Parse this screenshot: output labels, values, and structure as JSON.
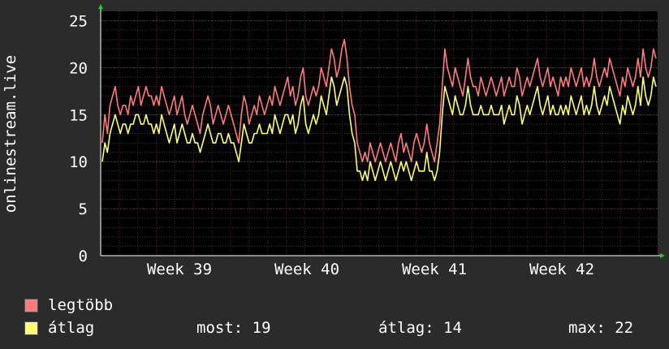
{
  "chart_data": {
    "type": "line",
    "title": "",
    "xlabel": "",
    "ylabel": "onlinestream.live",
    "ylim": [
      0,
      26
    ],
    "yticks": [
      0,
      5,
      10,
      15,
      20,
      25
    ],
    "xticks": [
      "Week 39",
      "Week 40",
      "Week 41",
      "Week 42"
    ],
    "grid": true,
    "background_color": "#000000",
    "series": [
      {
        "name": "legtöbb",
        "color": "#ff7b7b",
        "values": [
          12,
          15,
          13,
          16,
          17,
          18,
          16,
          15,
          16,
          16,
          15,
          17,
          16,
          17,
          18,
          16,
          17,
          18,
          17,
          17,
          16,
          17,
          16,
          18,
          17,
          16,
          15,
          16,
          17,
          15,
          16,
          17,
          15,
          14,
          15,
          16,
          15,
          14,
          13,
          15,
          16,
          17,
          16,
          14,
          15,
          16,
          15,
          14,
          15,
          16,
          15,
          14,
          13,
          12,
          15,
          17,
          16,
          14,
          15,
          16,
          15,
          17,
          16,
          15,
          16,
          17,
          16,
          18,
          17,
          16,
          17,
          18,
          19,
          17,
          18,
          16,
          17,
          19,
          20,
          17,
          16,
          17,
          18,
          17,
          18,
          20,
          19,
          18,
          20,
          22,
          21,
          19,
          20,
          22,
          23,
          21,
          18,
          16,
          15,
          12,
          11,
          10,
          11,
          10,
          12,
          11,
          10,
          11,
          12,
          11,
          10,
          11,
          12,
          11,
          10,
          12,
          13,
          11,
          12,
          11,
          10,
          12,
          13,
          12,
          11,
          12,
          14,
          12,
          11,
          10,
          12,
          14,
          18,
          22,
          20,
          19,
          18,
          20,
          19,
          18,
          17,
          19,
          21,
          19,
          18,
          18,
          17,
          19,
          18,
          17,
          18,
          19,
          18,
          17,
          18,
          19,
          17,
          18,
          19,
          18,
          18,
          20,
          19,
          17,
          18,
          19,
          18,
          19,
          20,
          21,
          19,
          18,
          19,
          20,
          18,
          19,
          18,
          17,
          19,
          18,
          19,
          18,
          20,
          19,
          18,
          19,
          20,
          18,
          19,
          18,
          19,
          21,
          19,
          18,
          19,
          20,
          19,
          21,
          20,
          19,
          18,
          17,
          19,
          18,
          20,
          19,
          18,
          19,
          21,
          19,
          22,
          20,
          19,
          20,
          22,
          21
        ],
        "sampling": "hourly-smoothed"
      },
      {
        "name": "átlag",
        "color": "#ffff77",
        "values": [
          10,
          12,
          11,
          13,
          14,
          15,
          14,
          13,
          14,
          14,
          13,
          14,
          14,
          15,
          15,
          14,
          14,
          15,
          14,
          14,
          13,
          14,
          13,
          15,
          14,
          13,
          12,
          13,
          14,
          12,
          13,
          14,
          13,
          12,
          12,
          13,
          12,
          12,
          11,
          12,
          13,
          14,
          13,
          12,
          12,
          13,
          13,
          12,
          12,
          13,
          12,
          12,
          11,
          10,
          12,
          14,
          13,
          12,
          12,
          13,
          13,
          14,
          13,
          13,
          13,
          14,
          13,
          15,
          14,
          13,
          14,
          15,
          15,
          14,
          15,
          13,
          14,
          16,
          17,
          14,
          13,
          14,
          15,
          14,
          15,
          17,
          16,
          15,
          17,
          19,
          18,
          16,
          17,
          18,
          19,
          18,
          15,
          13,
          12,
          9,
          9,
          8,
          9,
          8,
          10,
          9,
          8,
          9,
          10,
          9,
          8,
          9,
          10,
          9,
          8,
          9,
          10,
          9,
          10,
          9,
          8,
          9,
          10,
          9,
          9,
          9,
          11,
          9,
          9,
          8,
          9,
          11,
          15,
          18,
          17,
          16,
          15,
          17,
          16,
          15,
          15,
          16,
          18,
          16,
          15,
          15,
          15,
          16,
          15,
          15,
          15,
          16,
          15,
          15,
          15,
          16,
          14,
          15,
          16,
          15,
          15,
          17,
          16,
          14,
          15,
          16,
          15,
          16,
          17,
          18,
          16,
          15,
          16,
          17,
          15,
          16,
          15,
          15,
          16,
          15,
          16,
          15,
          17,
          16,
          15,
          16,
          17,
          15,
          16,
          15,
          16,
          18,
          16,
          15,
          16,
          17,
          16,
          18,
          17,
          16,
          15,
          14,
          16,
          15,
          17,
          16,
          15,
          16,
          18,
          16,
          19,
          17,
          16,
          17,
          19,
          18
        ],
        "sampling": "hourly-smoothed"
      }
    ],
    "legend_placement": "bottom-left"
  },
  "legend": {
    "items": [
      {
        "label": "legtöbb",
        "color": "#ff7b7b"
      },
      {
        "label": "átlag",
        "color": "#ffff77"
      }
    ],
    "stats": {
      "now_label": "most: 19",
      "avg_label": "átlag: 14",
      "max_label": "max: 22"
    }
  }
}
